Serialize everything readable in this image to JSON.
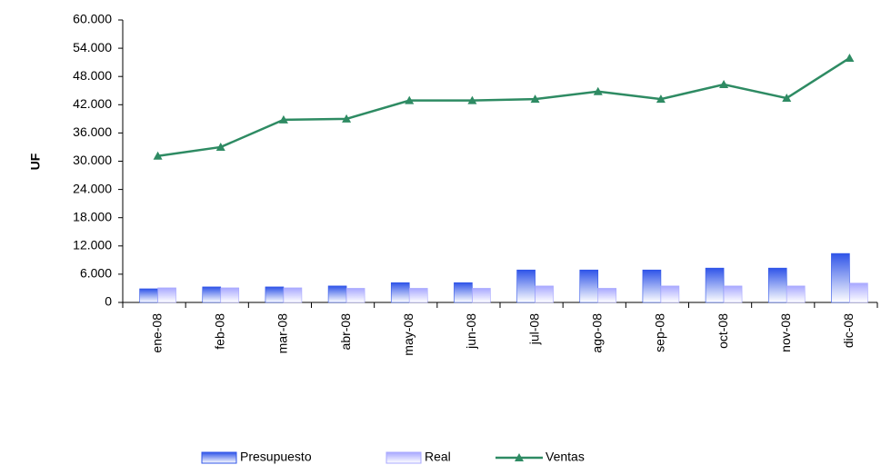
{
  "chart_data": {
    "type": "bar-line",
    "y_label": "UF",
    "categories": [
      "ene-08",
      "feb-08",
      "mar-08",
      "abr-08",
      "may-08",
      "jun-08",
      "jul-08",
      "ago-08",
      "sep-08",
      "oct-08",
      "nov-08",
      "dic-08"
    ],
    "series": [
      {
        "name": "Presupuesto",
        "type": "bar",
        "color": "#2f54e8",
        "values": [
          2900,
          3300,
          3300,
          3500,
          4200,
          4200,
          6900,
          6900,
          6900,
          7300,
          7300,
          10400
        ]
      },
      {
        "name": "Real",
        "type": "bar",
        "color": "#a8a8ff",
        "values": [
          3100,
          3100,
          3100,
          3000,
          3000,
          3000,
          3500,
          3000,
          3500,
          3500,
          3500,
          4100
        ]
      },
      {
        "name": "Ventas",
        "type": "line",
        "color": "#2e8b63",
        "values": [
          31100,
          33000,
          38800,
          39000,
          42900,
          42900,
          43200,
          44800,
          43200,
          46300,
          43400,
          51900
        ]
      }
    ],
    "ylim": [
      0,
      60000
    ],
    "yticks": [
      0,
      {
        "value": 6000,
        "label": "6.000"
      },
      {
        "value": 12000,
        "label": "12.000"
      },
      {
        "value": 18000,
        "label": "18.000"
      },
      {
        "value": 24000,
        "label": "24.000"
      },
      {
        "value": 30000,
        "label": "30.000"
      },
      {
        "value": 36000,
        "label": "36.000"
      },
      {
        "value": 42000,
        "label": "42.000"
      },
      {
        "value": 48000,
        "label": "48.000"
      },
      {
        "value": 54000,
        "label": "54.000"
      },
      {
        "value": 60000,
        "label": "60.000"
      }
    ],
    "legend": "bottom"
  }
}
